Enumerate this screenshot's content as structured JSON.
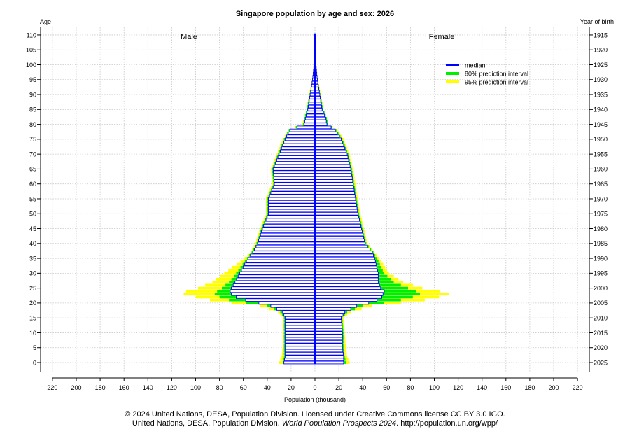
{
  "chart_data": {
    "type": "bar",
    "title": "Singapore population by age and sex: 2026",
    "xlabel": "Population (thousand)",
    "ylabel": "Age",
    "y2label": "Year of birth",
    "x_ticks": [
      220,
      200,
      180,
      160,
      140,
      120,
      100,
      80,
      60,
      40,
      20,
      0,
      20,
      40,
      60,
      80,
      100,
      120,
      140,
      160,
      180,
      200,
      220
    ],
    "x_range": [
      -220,
      220
    ],
    "age_ticks": [
      0,
      5,
      10,
      15,
      20,
      25,
      30,
      35,
      40,
      45,
      50,
      55,
      60,
      65,
      70,
      75,
      80,
      85,
      90,
      95,
      100,
      105,
      110
    ],
    "year_ticks": [
      2025,
      2020,
      2015,
      2010,
      2005,
      2000,
      1995,
      1990,
      1985,
      1980,
      1975,
      1970,
      1965,
      1960,
      1955,
      1950,
      1945,
      1940,
      1935,
      1930,
      1925,
      1920,
      1915
    ],
    "male_label": "Male",
    "female_label": "Female",
    "legend": [
      {
        "label": "median",
        "color": "#0000ff"
      },
      {
        "label": "80% prediction interval",
        "color": "#00ee00"
      },
      {
        "label": "95% prediction interval",
        "color": "#ffff00"
      }
    ],
    "legend_position": "top-right",
    "grid": true,
    "anchor_ages": [
      0,
      2,
      5,
      10,
      15,
      17,
      19,
      20,
      21,
      22,
      23,
      24,
      25,
      27,
      30,
      35,
      37,
      40,
      45,
      50,
      55,
      60,
      65,
      70,
      75,
      78,
      80,
      82,
      85,
      90,
      95,
      100,
      105,
      110
    ],
    "male_median": [
      26,
      25,
      25,
      25,
      25,
      27,
      37,
      47,
      58,
      66,
      70,
      71,
      70,
      67,
      63,
      56,
      52,
      48,
      44,
      39,
      39,
      34,
      35,
      30,
      25,
      21,
      9,
      8,
      6,
      4,
      2,
      0.7,
      0.2,
      0.1
    ],
    "male_lo80": [
      27,
      26,
      26,
      26,
      26,
      29,
      40,
      58,
      72,
      80,
      84,
      82,
      78,
      72,
      66,
      57,
      53,
      49,
      45,
      40,
      40,
      35,
      36,
      31,
      26,
      22,
      10,
      9,
      7,
      4.5,
      2.2,
      0.8,
      0.3,
      0.1
    ],
    "male_lo95": [
      30,
      28,
      27,
      27,
      27,
      31,
      46,
      70,
      88,
      100,
      110,
      108,
      98,
      86,
      76,
      59,
      54,
      50,
      46,
      41,
      41,
      36,
      37,
      32,
      27,
      22,
      11,
      9,
      7,
      5,
      2.5,
      0.9,
      0.3,
      0.1
    ],
    "male_hi95": [
      22,
      22,
      22,
      23,
      23,
      25,
      32,
      38,
      46,
      55,
      60,
      62,
      62,
      62,
      60,
      54,
      50,
      46,
      42,
      37,
      37,
      32,
      33,
      28,
      23,
      19,
      7,
      7,
      5,
      3,
      1.5,
      0.4,
      0.1,
      0
    ],
    "female_median": [
      24,
      24,
      23,
      23,
      22,
      25,
      35,
      45,
      52,
      56,
      57,
      58,
      55,
      53,
      53,
      50,
      48,
      42,
      39,
      36,
      34,
      32,
      30,
      27,
      22,
      17,
      10,
      9,
      6,
      4,
      2,
      0.8,
      0.2,
      0.1
    ],
    "female_lo80": [
      26,
      25,
      24,
      24,
      23,
      27,
      40,
      58,
      72,
      82,
      88,
      85,
      78,
      66,
      58,
      52,
      49,
      43,
      40,
      37,
      35,
      33,
      31,
      28,
      23,
      18,
      11,
      10,
      7,
      4.5,
      2.2,
      0.9,
      0.3,
      0.1
    ],
    "female_lo95": [
      29,
      27,
      26,
      25,
      24,
      30,
      48,
      72,
      92,
      104,
      112,
      105,
      90,
      74,
      62,
      54,
      50,
      44,
      41,
      38,
      36,
      34,
      32,
      29,
      24,
      19,
      11,
      10,
      7,
      5,
      2.5,
      1,
      0.3,
      0.1
    ],
    "female_hi95": [
      21,
      21,
      21,
      21,
      20,
      22,
      30,
      36,
      42,
      46,
      48,
      50,
      50,
      50,
      51,
      48,
      46,
      40,
      37,
      34,
      32,
      30,
      28,
      25,
      20,
      15,
      8,
      7,
      5,
      3,
      1.5,
      0.5,
      0.1,
      0
    ]
  },
  "footer": {
    "line1": "© 2024 United Nations, DESA, Population Division. Licensed under Creative Commons license CC BY 3.0 IGO.",
    "line2_prefix": "United Nations, DESA, Population Division. ",
    "line2_italic": "World Population Prospects 2024",
    "line2_suffix": ". http://population.un.org/wpp/"
  }
}
